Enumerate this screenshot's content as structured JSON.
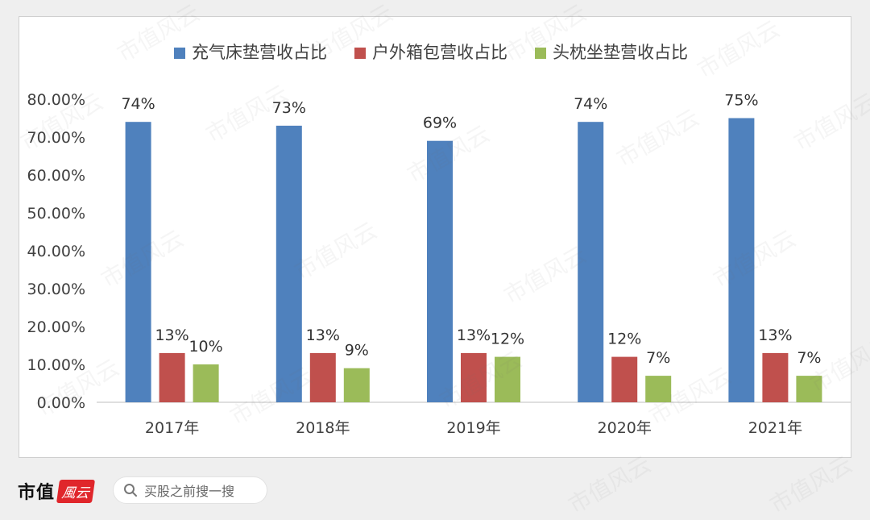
{
  "chart_data": {
    "type": "bar",
    "categories": [
      "2017年",
      "2018年",
      "2019年",
      "2020年",
      "2021年"
    ],
    "series": [
      {
        "name": "充气床垫营收占比",
        "color": "#4f81bd",
        "values": [
          74,
          73,
          69,
          74,
          75
        ],
        "labels": [
          "74%",
          "73%",
          "69%",
          "74%",
          "75%"
        ]
      },
      {
        "name": "户外箱包营收占比",
        "color": "#c0504d",
        "values": [
          13,
          13,
          13,
          12,
          13
        ],
        "labels": [
          "13%",
          "13%",
          "13%",
          "12%",
          "13%"
        ]
      },
      {
        "name": "头枕坐垫营收占比",
        "color": "#9bbb59",
        "values": [
          10,
          9,
          12,
          7,
          7
        ],
        "labels": [
          "10%",
          "9%",
          "12%",
          "7%",
          "7%"
        ]
      }
    ],
    "yticks": [
      "0.00%",
      "10.00%",
      "20.00%",
      "30.00%",
      "40.00%",
      "50.00%",
      "60.00%",
      "70.00%",
      "80.00%"
    ],
    "ylim": [
      0,
      80
    ],
    "legend_position": "top",
    "grid": false
  },
  "watermark": {
    "text": "市值风云"
  },
  "footer": {
    "brand": "市值",
    "brand_seal": "風云",
    "search_placeholder": "买股之前搜一搜",
    "search_icon": "search-icon"
  }
}
